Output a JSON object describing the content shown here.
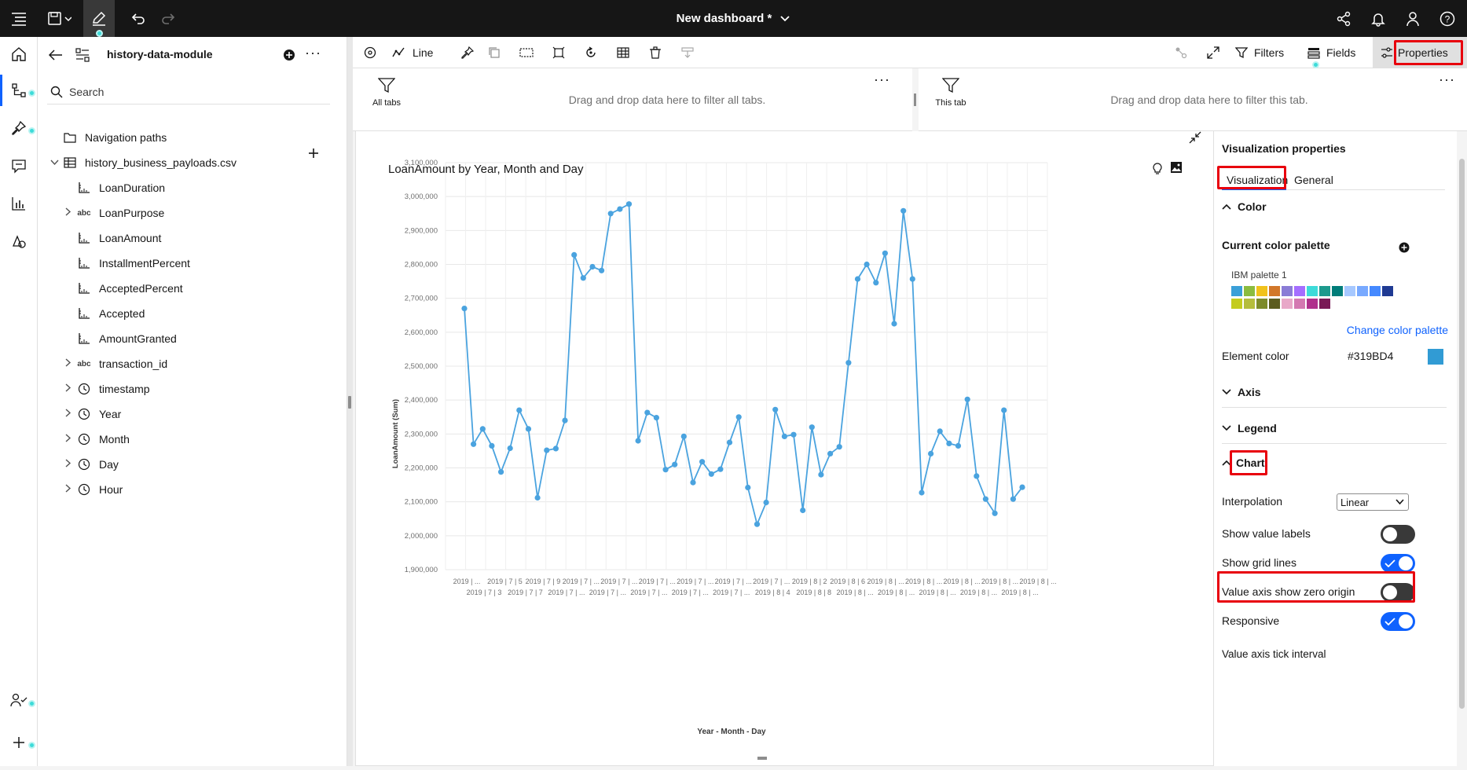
{
  "topbar": {
    "title": "New dashboard *"
  },
  "data_panel": {
    "module_name": "history-data-module",
    "search_placeholder": "Search",
    "tree": [
      {
        "label": "Navigation paths",
        "icon": "folder-icon",
        "level": 0,
        "expandable": false
      },
      {
        "label": "history_business_payloads.csv",
        "icon": "table-icon",
        "level": 0,
        "expandable": true,
        "expanded": true
      },
      {
        "label": "LoanDuration",
        "icon": "measure-icon",
        "level": 1,
        "expandable": false
      },
      {
        "label": "LoanPurpose",
        "icon": "abc-icon",
        "level": 1,
        "expandable": true
      },
      {
        "label": "LoanAmount",
        "icon": "measure-icon",
        "level": 1,
        "expandable": false
      },
      {
        "label": "InstallmentPercent",
        "icon": "measure-icon",
        "level": 1,
        "expandable": false
      },
      {
        "label": "AcceptedPercent",
        "icon": "measure-icon",
        "level": 1,
        "expandable": false
      },
      {
        "label": "Accepted",
        "icon": "measure-icon",
        "level": 1,
        "expandable": false
      },
      {
        "label": "AmountGranted",
        "icon": "measure-icon",
        "level": 1,
        "expandable": false
      },
      {
        "label": "transaction_id",
        "icon": "abc-icon",
        "level": 1,
        "expandable": true
      },
      {
        "label": "timestamp",
        "icon": "clock-icon",
        "level": 1,
        "expandable": true
      },
      {
        "label": "Year",
        "icon": "clock-icon",
        "level": 1,
        "expandable": true
      },
      {
        "label": "Month",
        "icon": "clock-icon",
        "level": 1,
        "expandable": true
      },
      {
        "label": "Day",
        "icon": "clock-icon",
        "level": 1,
        "expandable": true
      },
      {
        "label": "Hour",
        "icon": "clock-icon",
        "level": 1,
        "expandable": true
      }
    ]
  },
  "toolbar": {
    "viz_type": "Line",
    "filters_label": "Filters",
    "fields_label": "Fields",
    "properties_label": "Properties"
  },
  "filter_bar": {
    "all_tabs_label": "All tabs",
    "all_tabs_hint": "Drag and drop data here to filter all tabs.",
    "this_tab_label": "This tab",
    "this_tab_hint": "Drag and drop data here to filter this tab."
  },
  "chart_data": {
    "type": "line",
    "title": "LoanAmount by Year, Month and Day",
    "xlabel": "Year - Month - Day",
    "ylabel": "LoanAmount (Sum)",
    "ylim": [
      1900000,
      3100000
    ],
    "yticks": [
      "1,900,000",
      "2,000,000",
      "2,100,000",
      "2,200,000",
      "2,300,000",
      "2,400,000",
      "2,500,000",
      "2,600,000",
      "2,700,000",
      "2,800,000",
      "2,900,000",
      "3,000,000",
      "3,100,000"
    ],
    "xtick_row1": [
      "2019 | ...",
      "2019 | 7 | 5",
      "2019 | 7 | 9",
      "2019 | 7 | ...",
      "2019 | 7 | ...",
      "2019 | 7 | ...",
      "2019 | 7 | ...",
      "2019 | 7 | ...",
      "2019 | 7 | ...",
      "2019 | 8 | 2",
      "2019 | 8 | 6",
      "2019 | 8 | ...",
      "2019 | 8 | ...",
      "2019 | 8 | ...",
      "2019 | 8 | ...",
      "2019 | 8 | ..."
    ],
    "xtick_row2": [
      "2019 | 7 | 3",
      "2019 | 7 | 7",
      "2019 | 7 | ...",
      "2019 | 7 | ...",
      "2019 | 7 | ...",
      "2019 | 7 | ...",
      "2019 | 7 | ...",
      "2019 | 8 | 4",
      "2019 | 8 | 8",
      "2019 | 8 | ...",
      "2019 | 8 | ...",
      "2019 | 8 | ...",
      "2019 | 8 | ...",
      "2019 | 8 | ..."
    ],
    "grid": true,
    "color": "#4aa3df",
    "values": [
      2670000,
      2270000,
      2315000,
      2265000,
      2188000,
      2258000,
      2370000,
      2315000,
      2112000,
      2252000,
      2257000,
      2340000,
      2828000,
      2760000,
      2793000,
      2782000,
      2950000,
      2963000,
      2978000,
      2280000,
      2363000,
      2348000,
      2195000,
      2210000,
      2293000,
      2157000,
      2218000,
      2182000,
      2196000,
      2275000,
      2350000,
      2142000,
      2034000,
      2098000,
      2372000,
      2293000,
      2298000,
      2075000,
      2320000,
      2180000,
      2242000,
      2262000,
      2510000,
      2757000,
      2800000,
      2746000,
      2833000,
      2625000,
      2958000,
      2757000,
      2127000,
      2242000,
      2308000,
      2272000,
      2265000,
      2402000,
      2176000,
      2108000,
      2066000,
      2370000,
      2108000,
      2143000
    ]
  },
  "properties": {
    "heading": "Visualization properties",
    "tab_visualization": "Visualization",
    "tab_general": "General",
    "section_color": "Color",
    "current_palette_label": "Current color palette",
    "palette_name": "IBM palette 1",
    "palette_colors": [
      "#3a9fd8",
      "#8bbc3f",
      "#f1c21b",
      "#d2772a",
      "#8a7cd6",
      "#a56eff",
      "#3ddbd9",
      "#1d9a8d",
      "#007d79",
      "#a6c8ff",
      "#78a9ff",
      "#4589ff",
      "#1f3a93",
      "#c4cc1f",
      "#b5bd3c",
      "#7d8b2a",
      "#5c5c1f",
      "#e8a8c8",
      "#d478b1",
      "#b0308c",
      "#7a1a56"
    ],
    "change_palette": "Change color palette",
    "element_color_label": "Element color",
    "element_color_value": "#319BD4",
    "section_axis": "Axis",
    "section_legend": "Legend",
    "section_chart": "Chart",
    "interpolation_label": "Interpolation",
    "interpolation_value": "Linear",
    "show_value_labels": "Show value labels",
    "show_grid_lines": "Show grid lines",
    "value_axis_zero": "Value axis show zero origin",
    "responsive": "Responsive",
    "value_axis_tick": "Value axis tick interval",
    "toggles": {
      "show_value_labels": false,
      "show_grid_lines": true,
      "value_axis_zero": false,
      "responsive": true
    }
  }
}
